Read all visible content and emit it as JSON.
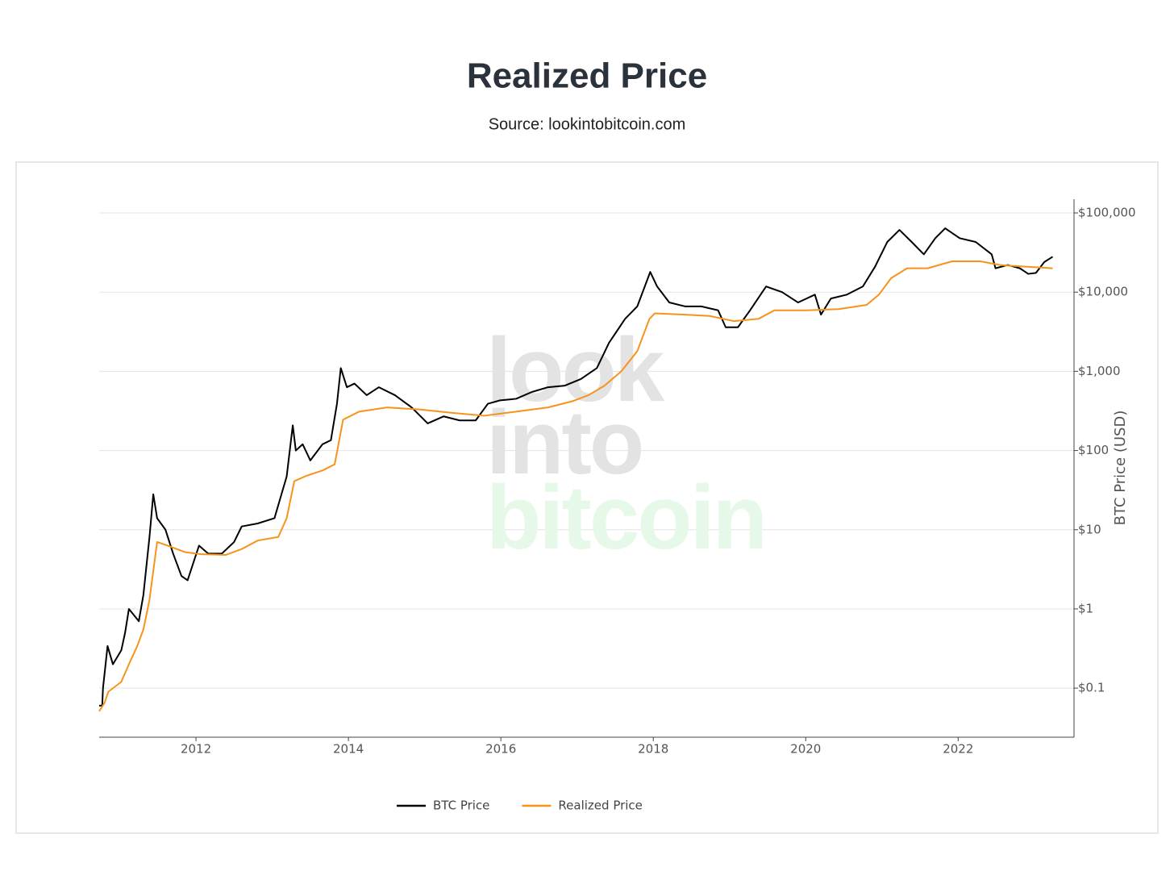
{
  "chart_data": {
    "type": "line",
    "title": "Realized Price",
    "subtitle": "Source: lookintobitcoin.com",
    "y_axis_label": "BTC Price (USD)",
    "watermark": [
      "look",
      "into",
      "bitcoin"
    ],
    "log_y": true,
    "grid": true,
    "legend": "bottom",
    "xlim": [
      2010.73,
      2023.52
    ],
    "xticks": [
      2012,
      2014,
      2016,
      2018,
      2020,
      2022
    ],
    "ylim": [
      0.024,
      149000
    ],
    "yticks": [
      {
        "value": 0.1,
        "label": "$0.1"
      },
      {
        "value": 1,
        "label": "$1"
      },
      {
        "value": 10,
        "label": "$10"
      },
      {
        "value": 100,
        "label": "$100"
      },
      {
        "value": 1000,
        "label": "$1,000"
      },
      {
        "value": 10000,
        "label": "$10,000"
      },
      {
        "value": 100000,
        "label": "$100,000"
      }
    ],
    "series": [
      {
        "name": "BTC Price",
        "color": "#000000",
        "x": [
          2010.73,
          2010.77,
          2010.78,
          2010.84,
          2010.91,
          2011.02,
          2011.07,
          2011.12,
          2011.25,
          2011.31,
          2011.39,
          2011.44,
          2011.49,
          2011.6,
          2011.7,
          2011.81,
          2011.89,
          2012.04,
          2012.16,
          2012.34,
          2012.5,
          2012.6,
          2012.81,
          2013.03,
          2013.19,
          2013.27,
          2013.31,
          2013.4,
          2013.5,
          2013.66,
          2013.77,
          2013.85,
          2013.9,
          2013.98,
          2014.08,
          2014.24,
          2014.4,
          2014.61,
          2014.83,
          2015.04,
          2015.25,
          2015.46,
          2015.67,
          2015.83,
          2015.99,
          2016.2,
          2016.41,
          2016.62,
          2016.84,
          2017.05,
          2017.26,
          2017.42,
          2017.63,
          2017.79,
          2017.96,
          2018.05,
          2018.21,
          2018.42,
          2018.63,
          2018.85,
          2018.95,
          2019.11,
          2019.27,
          2019.48,
          2019.69,
          2019.9,
          2020.12,
          2020.2,
          2020.33,
          2020.54,
          2020.75,
          2020.91,
          2021.07,
          2021.23,
          2021.39,
          2021.55,
          2021.7,
          2021.83,
          2022.02,
          2022.23,
          2022.44,
          2022.49,
          2022.65,
          2022.81,
          2022.92,
          2023.02,
          2023.13,
          2023.24
        ],
        "values": [
          0.06,
          0.06,
          0.1,
          0.34,
          0.2,
          0.3,
          0.5,
          1,
          0.7,
          1.5,
          8.1,
          28,
          14,
          10,
          5,
          2.6,
          2.3,
          6.3,
          5,
          5,
          7,
          11,
          12,
          14,
          47,
          208,
          100,
          120,
          75,
          120,
          135,
          390,
          1100,
          630,
          700,
          500,
          630,
          500,
          350,
          220,
          270,
          240,
          240,
          390,
          430,
          450,
          550,
          630,
          660,
          800,
          1100,
          2300,
          4600,
          6600,
          18000,
          11800,
          7400,
          6600,
          6600,
          5900,
          3600,
          3600,
          5900,
          11800,
          10000,
          7400,
          9300,
          5200,
          8300,
          9300,
          11800,
          21000,
          43000,
          61000,
          43000,
          30000,
          48000,
          64000,
          48000,
          43000,
          30000,
          20000,
          22000,
          20000,
          17000,
          17500,
          24000,
          28000
        ]
      },
      {
        "name": "Realized Price",
        "color": "#f7931a",
        "x": [
          2010.73,
          2010.8,
          2010.85,
          2011.02,
          2011.12,
          2011.23,
          2011.31,
          2011.39,
          2011.49,
          2011.65,
          2011.86,
          2012.07,
          2012.39,
          2012.6,
          2012.81,
          2013.08,
          2013.19,
          2013.29,
          2013.45,
          2013.66,
          2013.82,
          2013.93,
          2014.14,
          2014.51,
          2014.93,
          2015.35,
          2015.78,
          2016.2,
          2016.62,
          2016.94,
          2017.15,
          2017.36,
          2017.58,
          2017.79,
          2017.95,
          2018.02,
          2018.42,
          2018.74,
          2019.06,
          2019.38,
          2019.59,
          2020.01,
          2020.43,
          2020.8,
          2020.96,
          2021.12,
          2021.33,
          2021.6,
          2021.92,
          2022.29,
          2022.55,
          2022.87,
          2023.24
        ],
        "values": [
          0.051,
          0.065,
          0.09,
          0.12,
          0.2,
          0.34,
          0.55,
          1.3,
          7,
          6.2,
          5.2,
          4.9,
          4.8,
          5.7,
          7.3,
          8.1,
          14,
          41,
          48,
          56,
          67,
          245,
          310,
          350,
          330,
          300,
          275,
          310,
          350,
          420,
          500,
          660,
          1000,
          1800,
          4600,
          5400,
          5200,
          5000,
          4300,
          4600,
          5900,
          5900,
          6100,
          6900,
          9300,
          15000,
          20000,
          20000,
          24500,
          24500,
          22000,
          21000,
          20000
        ]
      }
    ]
  }
}
